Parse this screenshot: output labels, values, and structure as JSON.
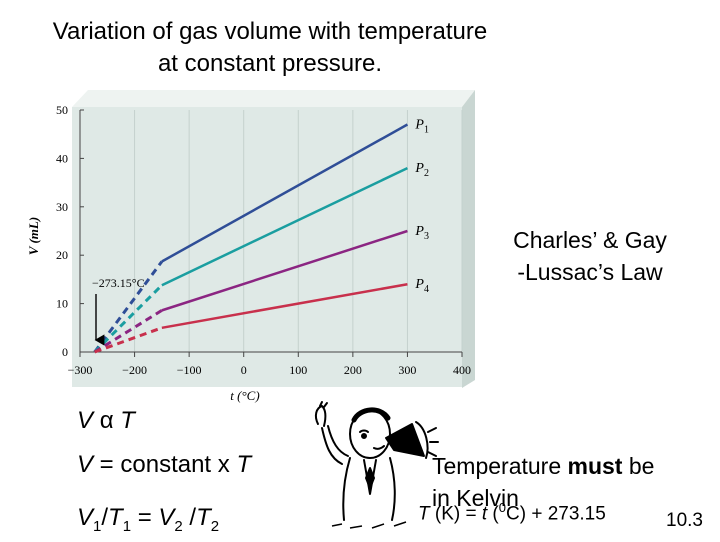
{
  "slide": {
    "title": "Variation of gas volume with temperature\nat constant pressure.",
    "side_label": "Charles’ & Gay\n-Lussac’s Law",
    "relation": {
      "v": "V",
      "alpha": "α",
      "t": "T"
    },
    "equation_constant": {
      "v": "V",
      "mid": " = constant x ",
      "t": "T"
    },
    "equation_ratio": {
      "v1": "V",
      "s1": "1",
      "slash1": "/",
      "t1": "T",
      "s2": "1",
      "eq": " = ",
      "v2": "V",
      "s3": "2",
      "slash2": " /",
      "t2": "T",
      "s4": "2"
    },
    "note": {
      "before": "Temperature ",
      "bold": "must",
      "after": " be\nin Kelvin"
    },
    "formula": {
      "t": "T",
      "k": " (K) = ",
      "tc": "t",
      "open": " (",
      "sup": "0",
      "close": "C) + 273.15"
    },
    "page_number": "10.3"
  },
  "chart_data": {
    "type": "line",
    "title": "",
    "xlabel": "t (°C)",
    "ylabel": "V (mL)",
    "xlim": [
      -300,
      400
    ],
    "ylim": [
      0,
      50
    ],
    "xticks": [
      -300,
      -200,
      -100,
      0,
      100,
      200,
      300,
      400
    ],
    "yticks": [
      0,
      10,
      20,
      30,
      40,
      50
    ],
    "x_tick_labels": [
      "−300",
      "−200",
      "−100",
      "0",
      "100",
      "200",
      "300",
      "400"
    ],
    "annotation": "−273.15°C",
    "background_color": "#dfe9e6",
    "series": [
      {
        "name": "P1",
        "sub": "1",
        "color": "#2f4e97",
        "x": [
          -273.15,
          -150,
          300
        ],
        "y": [
          0,
          18.7,
          47
        ]
      },
      {
        "name": "P2",
        "sub": "2",
        "color": "#1a9ea0",
        "x": [
          -273.15,
          -150,
          300
        ],
        "y": [
          0,
          13.8,
          38
        ]
      },
      {
        "name": "P3",
        "sub": "3",
        "color": "#8b2582",
        "x": [
          -273.15,
          -150,
          300
        ],
        "y": [
          0,
          8.6,
          25
        ]
      },
      {
        "name": "P4",
        "sub": "4",
        "color": "#c8304c",
        "x": [
          -273.15,
          -150,
          300
        ],
        "y": [
          0,
          5.0,
          14
        ]
      }
    ]
  }
}
